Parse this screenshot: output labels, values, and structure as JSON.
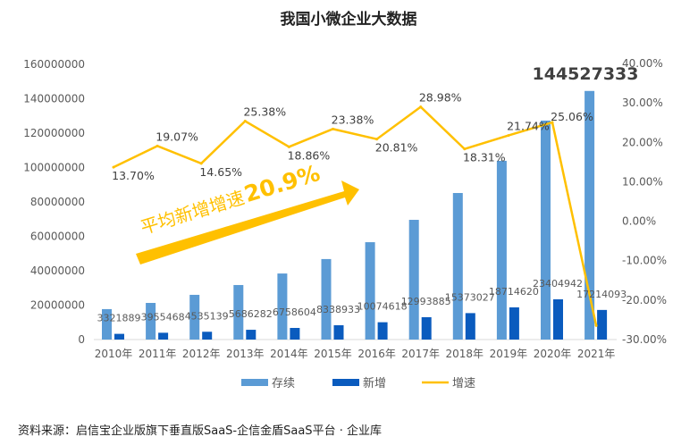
{
  "chart_data": {
    "type": "bar+line",
    "title": "我国小微企业大数据",
    "categories": [
      "2010年",
      "2011年",
      "2012年",
      "2013年",
      "2014年",
      "2015年",
      "2016年",
      "2017年",
      "2018年",
      "2019年",
      "2020年",
      "2021年"
    ],
    "series": [
      {
        "name": "存续",
        "type": "bar",
        "axis": "left",
        "color": "#5B9BD5",
        "values": [
          17700000,
          21300000,
          26000000,
          31700000,
          38400000,
          46800000,
          56600000,
          69600000,
          85200000,
          103900000,
          127300000,
          144527333
        ]
      },
      {
        "name": "新增",
        "type": "bar",
        "axis": "left",
        "color": "#0A5BBE",
        "values": [
          3321889,
          3955468,
          4535139,
          5686282,
          6758604,
          8338933,
          10074618,
          12993885,
          15373027,
          18714620,
          23404942,
          17214093
        ]
      },
      {
        "name": "增速",
        "type": "line",
        "axis": "right",
        "color": "#FFC000",
        "values": [
          13.7,
          19.07,
          14.65,
          25.38,
          18.86,
          23.38,
          20.81,
          28.98,
          18.31,
          21.74,
          25.06,
          -26.45
        ]
      }
    ],
    "data_labels": {
      "new": [
        "3321889",
        "3955468",
        "4535139",
        "5686282",
        "6758604",
        "8338933",
        "10074618",
        "12993885",
        "15373027",
        "18714620",
        "23404942",
        "17214093"
      ],
      "growth": [
        "13.70%",
        "19.07%",
        "14.65%",
        "25.38%",
        "18.86%",
        "23.38%",
        "20.81%",
        "28.98%",
        "18.31%",
        "21.74%",
        "25.06%",
        ""
      ],
      "highlight": "144527333"
    },
    "left_axis": {
      "ylim": [
        0,
        160000000
      ],
      "ticks": [
        "0",
        "20000000",
        "40000000",
        "60000000",
        "80000000",
        "100000000",
        "120000000",
        "140000000",
        "160000000"
      ]
    },
    "right_axis": {
      "ylim": [
        -30,
        40
      ],
      "ticks": [
        "-30.00%",
        "-20.00%",
        "-10.00%",
        "0.00%",
        "10.00%",
        "20.00%",
        "30.00%",
        "40.00%"
      ]
    },
    "grid": false,
    "legend_position": "bottom",
    "annotation": {
      "text": "平均新增增速",
      "value": "20.9%",
      "color": "#FFC000"
    }
  },
  "source": "资料来源：启信宝企业版旗下垂直版SaaS-企信金盾SaaS平台 · 企业库"
}
